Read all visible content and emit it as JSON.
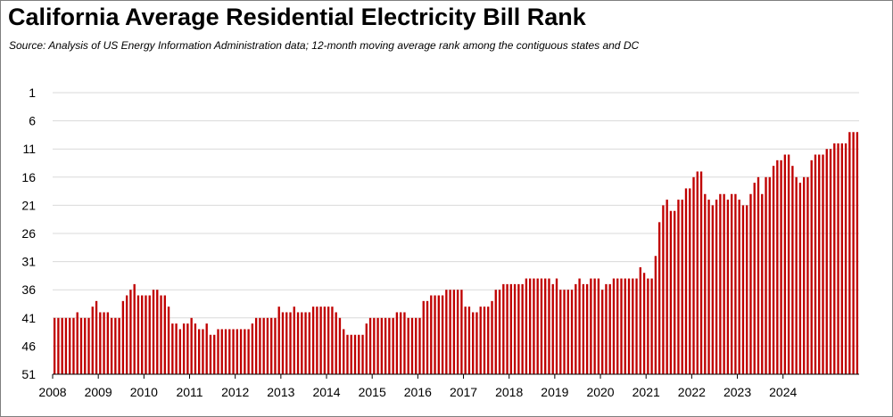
{
  "chart_data": {
    "type": "bar",
    "title": "California Average Residential Electricity Bill Rank",
    "subtitle": "Source:  Analysis of US Energy Information Administration data; 12-month moving average rank among the contiguous states and DC",
    "xlabel": "",
    "ylabel": "",
    "y_inverted": true,
    "ylim": [
      1,
      51
    ],
    "y_ticks": [
      "1",
      "6",
      "11",
      "16",
      "21",
      "26",
      "31",
      "36",
      "41",
      "46",
      "51"
    ],
    "x_ticks": [
      "2008",
      "2009",
      "2010",
      "2011",
      "2012",
      "2013",
      "2014",
      "2015",
      "2016",
      "2017",
      "2018",
      "2019",
      "2020",
      "2021",
      "2022",
      "2023",
      "2024"
    ],
    "grid": true,
    "legend": "none",
    "bar_color": "#c00000",
    "start": "2008-01",
    "frequency": "monthly",
    "values": [
      41,
      41,
      41,
      41,
      41,
      41,
      40,
      41,
      41,
      41,
      39,
      38,
      40,
      40,
      40,
      41,
      41,
      41,
      38,
      37,
      36,
      35,
      37,
      37,
      37,
      37,
      36,
      36,
      37,
      37,
      39,
      42,
      42,
      43,
      42,
      42,
      41,
      42,
      43,
      43,
      42,
      44,
      44,
      43,
      43,
      43,
      43,
      43,
      43,
      43,
      43,
      43,
      42,
      41,
      41,
      41,
      41,
      41,
      41,
      39,
      40,
      40,
      40,
      39,
      40,
      40,
      40,
      40,
      39,
      39,
      39,
      39,
      39,
      39,
      40,
      41,
      43,
      44,
      44,
      44,
      44,
      44,
      42,
      41,
      41,
      41,
      41,
      41,
      41,
      41,
      40,
      40,
      40,
      41,
      41,
      41,
      41,
      38,
      38,
      37,
      37,
      37,
      37,
      36,
      36,
      36,
      36,
      36,
      39,
      39,
      40,
      40,
      39,
      39,
      39,
      38,
      36,
      36,
      35,
      35,
      35,
      35,
      35,
      35,
      34,
      34,
      34,
      34,
      34,
      34,
      34,
      35,
      34,
      36,
      36,
      36,
      36,
      35,
      34,
      35,
      35,
      34,
      34,
      34,
      36,
      35,
      35,
      34,
      34,
      34,
      34,
      34,
      34,
      34,
      32,
      33,
      34,
      34,
      30,
      24,
      21,
      20,
      22,
      22,
      20,
      20,
      18,
      18,
      16,
      15,
      15,
      19,
      20,
      21,
      20,
      19,
      19,
      20,
      19,
      19,
      20,
      21,
      21,
      19,
      17,
      16,
      19,
      16,
      16,
      14,
      13,
      13,
      12,
      12,
      14,
      16,
      17,
      16,
      16,
      13,
      12,
      12,
      12,
      11,
      11,
      10,
      10,
      10,
      10,
      8,
      8,
      8
    ]
  }
}
